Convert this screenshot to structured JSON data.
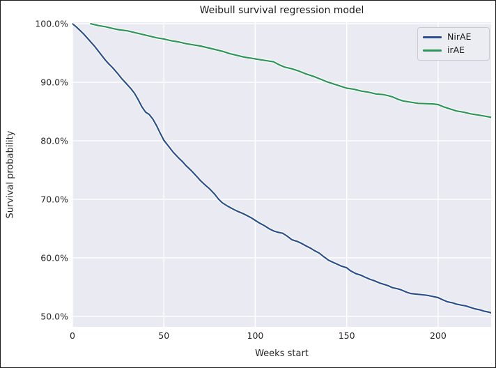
{
  "chart_data": {
    "type": "line",
    "title": "Weibull survival regression model",
    "xlabel": "Weeks start",
    "ylabel": "Survival probability",
    "xlim": [
      0,
      229
    ],
    "ylim": [
      48.2,
      100.25
    ],
    "grid": true,
    "legend_position": "upper right",
    "plot_background": "#eaeaf2",
    "gridline_color": "#ffffff",
    "x_ticks": [
      {
        "v": 0,
        "label": "0"
      },
      {
        "v": 50,
        "label": "50"
      },
      {
        "v": 100,
        "label": "100"
      },
      {
        "v": 150,
        "label": "150"
      },
      {
        "v": 200,
        "label": "200"
      }
    ],
    "y_ticks": [
      {
        "v": 100,
        "label": "100.0%"
      },
      {
        "v": 90,
        "label": "90.0%"
      },
      {
        "v": 80,
        "label": "80.0%"
      },
      {
        "v": 70,
        "label": "70.0%"
      },
      {
        "v": 60,
        "label": "60.0%"
      },
      {
        "v": 50,
        "label": "50.0%"
      }
    ],
    "series": [
      {
        "name": "NirAE",
        "color": "#2b508f",
        "points": [
          [
            0,
            100
          ],
          [
            2,
            99.5
          ],
          [
            4,
            98.9
          ],
          [
            6,
            98.3
          ],
          [
            8,
            97.6
          ],
          [
            10,
            96.9
          ],
          [
            12,
            96.2
          ],
          [
            14,
            95.4
          ],
          [
            16,
            94.6
          ],
          [
            18,
            93.8
          ],
          [
            20,
            93.1
          ],
          [
            22,
            92.5
          ],
          [
            25,
            91.4
          ],
          [
            27,
            90.6
          ],
          [
            30,
            89.6
          ],
          [
            32,
            88.9
          ],
          [
            34,
            88.1
          ],
          [
            36,
            87.0
          ],
          [
            38,
            85.8
          ],
          [
            40,
            84.9
          ],
          [
            42,
            84.5
          ],
          [
            44,
            83.7
          ],
          [
            46,
            82.6
          ],
          [
            48,
            81.3
          ],
          [
            50,
            80.1
          ],
          [
            52,
            79.3
          ],
          [
            55,
            78.1
          ],
          [
            58,
            77.1
          ],
          [
            60,
            76.5
          ],
          [
            62,
            75.8
          ],
          [
            65,
            74.9
          ],
          [
            68,
            73.9
          ],
          [
            70,
            73.2
          ],
          [
            72,
            72.6
          ],
          [
            75,
            71.8
          ],
          [
            78,
            70.8
          ],
          [
            80,
            70.0
          ],
          [
            82,
            69.4
          ],
          [
            85,
            68.8
          ],
          [
            88,
            68.3
          ],
          [
            90,
            68.0
          ],
          [
            93,
            67.6
          ],
          [
            95,
            67.3
          ],
          [
            98,
            66.8
          ],
          [
            100,
            66.4
          ],
          [
            102,
            66.0
          ],
          [
            105,
            65.5
          ],
          [
            108,
            64.9
          ],
          [
            110,
            64.6
          ],
          [
            112,
            64.4
          ],
          [
            115,
            64.2
          ],
          [
            117,
            63.8
          ],
          [
            120,
            63.1
          ],
          [
            123,
            62.8
          ],
          [
            125,
            62.5
          ],
          [
            128,
            62.0
          ],
          [
            130,
            61.7
          ],
          [
            132,
            61.3
          ],
          [
            135,
            60.8
          ],
          [
            137,
            60.3
          ],
          [
            140,
            59.6
          ],
          [
            142,
            59.3
          ],
          [
            145,
            58.9
          ],
          [
            147,
            58.6
          ],
          [
            150,
            58.3
          ],
          [
            152,
            57.8
          ],
          [
            155,
            57.3
          ],
          [
            158,
            57.0
          ],
          [
            160,
            56.7
          ],
          [
            163,
            56.3
          ],
          [
            165,
            56.1
          ],
          [
            168,
            55.7
          ],
          [
            170,
            55.5
          ],
          [
            173,
            55.2
          ],
          [
            175,
            54.9
          ],
          [
            178,
            54.7
          ],
          [
            180,
            54.5
          ],
          [
            183,
            54.1
          ],
          [
            185,
            53.9
          ],
          [
            188,
            53.8
          ],
          [
            191,
            53.7
          ],
          [
            194,
            53.6
          ],
          [
            197,
            53.4
          ],
          [
            200,
            53.2
          ],
          [
            202,
            52.9
          ],
          [
            205,
            52.5
          ],
          [
            208,
            52.3
          ],
          [
            210,
            52.1
          ],
          [
            213,
            51.9
          ],
          [
            215,
            51.8
          ],
          [
            218,
            51.5
          ],
          [
            220,
            51.3
          ],
          [
            223,
            51.1
          ],
          [
            225,
            50.9
          ],
          [
            228,
            50.7
          ],
          [
            229,
            50.6
          ]
        ]
      },
      {
        "name": "irAE",
        "color": "#2e9658",
        "points": [
          [
            10,
            100
          ],
          [
            14,
            99.7
          ],
          [
            18,
            99.5
          ],
          [
            22,
            99.2
          ],
          [
            25,
            99.0
          ],
          [
            30,
            98.8
          ],
          [
            34,
            98.5
          ],
          [
            38,
            98.2
          ],
          [
            42,
            97.9
          ],
          [
            46,
            97.6
          ],
          [
            50,
            97.4
          ],
          [
            54,
            97.1
          ],
          [
            58,
            96.9
          ],
          [
            62,
            96.6
          ],
          [
            66,
            96.4
          ],
          [
            70,
            96.2
          ],
          [
            74,
            95.9
          ],
          [
            78,
            95.6
          ],
          [
            82,
            95.3
          ],
          [
            86,
            94.9
          ],
          [
            90,
            94.6
          ],
          [
            94,
            94.3
          ],
          [
            98,
            94.1
          ],
          [
            100,
            94.0
          ],
          [
            104,
            93.8
          ],
          [
            108,
            93.6
          ],
          [
            110,
            93.5
          ],
          [
            113,
            93.0
          ],
          [
            116,
            92.6
          ],
          [
            120,
            92.3
          ],
          [
            124,
            91.9
          ],
          [
            128,
            91.4
          ],
          [
            132,
            91.0
          ],
          [
            136,
            90.5
          ],
          [
            140,
            90.0
          ],
          [
            144,
            89.6
          ],
          [
            148,
            89.2
          ],
          [
            150,
            89.0
          ],
          [
            154,
            88.8
          ],
          [
            158,
            88.5
          ],
          [
            162,
            88.3
          ],
          [
            166,
            88.0
          ],
          [
            170,
            87.9
          ],
          [
            173,
            87.7
          ],
          [
            175,
            87.5
          ],
          [
            178,
            87.1
          ],
          [
            181,
            86.8
          ],
          [
            185,
            86.6
          ],
          [
            189,
            86.4
          ],
          [
            193,
            86.35
          ],
          [
            197,
            86.3
          ],
          [
            200,
            86.2
          ],
          [
            203,
            85.8
          ],
          [
            206,
            85.5
          ],
          [
            210,
            85.1
          ],
          [
            214,
            84.9
          ],
          [
            218,
            84.6
          ],
          [
            222,
            84.4
          ],
          [
            226,
            84.2
          ],
          [
            229,
            84.0
          ]
        ]
      }
    ]
  }
}
